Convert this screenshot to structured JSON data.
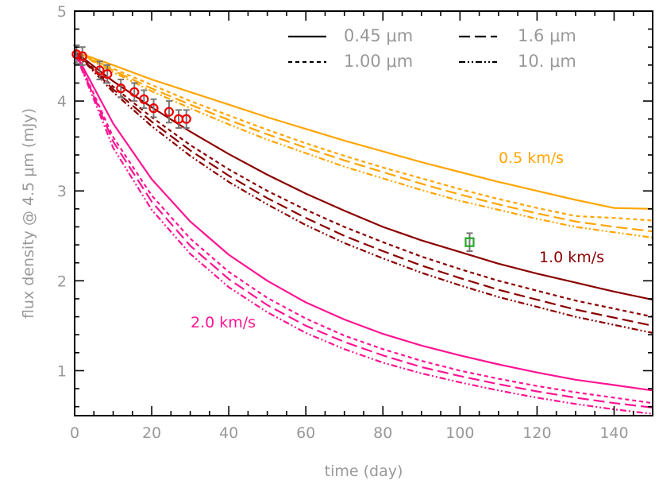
{
  "chart_data": {
    "type": "line",
    "xlabel": "time (day)",
    "ylabel": "flux density @ 4.5 μm (mJy)",
    "xlim": [
      0,
      150
    ],
    "ylim": [
      0.5,
      5.0
    ],
    "x_ticks": [
      0,
      20,
      40,
      60,
      80,
      100,
      120,
      140
    ],
    "y_ticks": [
      1,
      2,
      3,
      4,
      5
    ],
    "grid": false,
    "legend_position": "top-right",
    "legend": [
      {
        "label": "0.45 μm",
        "style": "solid"
      },
      {
        "label": "1.6 μm",
        "style": "long-dash"
      },
      {
        "label": "1.00 μm",
        "style": "short-dash"
      },
      {
        "label": "10. μm",
        "style": "dash-dot"
      }
    ],
    "groups": [
      {
        "annotation": "0.5 km/s",
        "color": "#FFA500",
        "series": [
          {
            "name": "0.45 μm",
            "style": "solid",
            "x": [
              0,
              10,
              20,
              30,
              40,
              50,
              60,
              70,
              80,
              90,
              100,
              110,
              120,
              130,
              140,
              150
            ],
            "y": [
              4.55,
              4.4,
              4.24,
              4.1,
              3.96,
              3.82,
              3.69,
              3.56,
              3.44,
              3.32,
              3.21,
              3.1,
              3.0,
              2.9,
              2.81,
              2.8
            ]
          },
          {
            "name": "1.00 μm",
            "style": "short-dash",
            "x": [
              0,
              10,
              20,
              30,
              40,
              50,
              60,
              70,
              80,
              90,
              100,
              110,
              120,
              130,
              140,
              150
            ],
            "y": [
              4.55,
              4.36,
              4.18,
              4.0,
              3.84,
              3.68,
              3.53,
              3.39,
              3.26,
              3.14,
              3.02,
              2.91,
              2.81,
              2.72,
              2.7,
              2.67
            ]
          },
          {
            "name": "1.6 μm",
            "style": "long-dash",
            "x": [
              0,
              10,
              20,
              30,
              40,
              50,
              60,
              70,
              80,
              90,
              100,
              110,
              120,
              130,
              140,
              150
            ],
            "y": [
              4.55,
              4.34,
              4.14,
              3.96,
              3.79,
              3.63,
              3.48,
              3.34,
              3.21,
              3.08,
              2.96,
              2.85,
              2.75,
              2.66,
              2.6,
              2.55
            ]
          },
          {
            "name": "10. μm",
            "style": "dash-dot",
            "x": [
              0,
              10,
              20,
              30,
              40,
              50,
              60,
              70,
              80,
              90,
              100,
              110,
              120,
              130,
              140,
              150
            ],
            "y": [
              4.55,
              4.32,
              4.11,
              3.92,
              3.74,
              3.57,
              3.42,
              3.27,
              3.14,
              3.01,
              2.89,
              2.79,
              2.69,
              2.6,
              2.54,
              2.48
            ]
          }
        ]
      },
      {
        "annotation": "1.0 km/s",
        "color": "#8B0000",
        "series": [
          {
            "name": "0.45 μm",
            "style": "solid",
            "x": [
              0,
              10,
              20,
              30,
              40,
              50,
              60,
              70,
              80,
              90,
              100,
              110,
              120,
              130,
              140,
              150
            ],
            "y": [
              4.55,
              4.22,
              3.93,
              3.66,
              3.41,
              3.18,
              2.97,
              2.78,
              2.6,
              2.45,
              2.32,
              2.19,
              2.08,
              1.98,
              1.88,
              1.79
            ]
          },
          {
            "name": "1.00 μm",
            "style": "short-dash",
            "x": [
              0,
              10,
              20,
              30,
              40,
              50,
              60,
              70,
              80,
              90,
              100,
              110,
              120,
              130,
              140,
              150
            ],
            "y": [
              4.55,
              4.16,
              3.82,
              3.51,
              3.24,
              3.0,
              2.79,
              2.6,
              2.43,
              2.27,
              2.13,
              2.0,
              1.89,
              1.78,
              1.69,
              1.6
            ]
          },
          {
            "name": "1.6 μm",
            "style": "long-dash",
            "x": [
              0,
              10,
              20,
              30,
              40,
              50,
              60,
              70,
              80,
              90,
              100,
              110,
              120,
              130,
              140,
              150
            ],
            "y": [
              4.55,
              4.13,
              3.77,
              3.45,
              3.17,
              2.92,
              2.7,
              2.5,
              2.33,
              2.17,
              2.03,
              1.9,
              1.79,
              1.68,
              1.59,
              1.5
            ]
          },
          {
            "name": "10. μm",
            "style": "dash-dot",
            "x": [
              0,
              10,
              20,
              30,
              40,
              50,
              60,
              70,
              80,
              90,
              100,
              110,
              120,
              130,
              140,
              150
            ],
            "y": [
              4.55,
              4.1,
              3.72,
              3.39,
              3.1,
              2.85,
              2.62,
              2.42,
              2.25,
              2.09,
              1.95,
              1.82,
              1.71,
              1.6,
              1.51,
              1.42
            ]
          }
        ]
      },
      {
        "annotation": "2.0 km/s",
        "color": "#FF1493",
        "series": [
          {
            "name": "0.45 μm",
            "style": "solid",
            "x": [
              0,
              10,
              20,
              30,
              40,
              50,
              60,
              70,
              80,
              90,
              100,
              110,
              120,
              130,
              140,
              150
            ],
            "y": [
              4.55,
              3.75,
              3.13,
              2.66,
              2.29,
              2.0,
              1.76,
              1.57,
              1.41,
              1.28,
              1.17,
              1.07,
              0.98,
              0.9,
              0.84,
              0.78
            ]
          },
          {
            "name": "1.00 μm",
            "style": "short-dash",
            "x": [
              0,
              10,
              20,
              30,
              40,
              50,
              60,
              70,
              80,
              90,
              100,
              110,
              120,
              130,
              140,
              150
            ],
            "y": [
              4.55,
              3.6,
              2.95,
              2.47,
              2.1,
              1.81,
              1.58,
              1.39,
              1.24,
              1.11,
              1.0,
              0.91,
              0.83,
              0.76,
              0.7,
              0.64
            ]
          },
          {
            "name": "1.6 μm",
            "style": "long-dash",
            "x": [
              0,
              10,
              20,
              30,
              40,
              50,
              60,
              70,
              80,
              90,
              100,
              110,
              120,
              130,
              140,
              150
            ],
            "y": [
              4.55,
              3.55,
              2.88,
              2.39,
              2.02,
              1.73,
              1.5,
              1.32,
              1.17,
              1.04,
              0.94,
              0.85,
              0.77,
              0.7,
              0.64,
              0.59
            ]
          },
          {
            "name": "10. μm",
            "style": "dash-dot",
            "x": [
              0,
              10,
              20,
              30,
              40,
              50,
              60,
              70,
              80,
              90,
              100,
              110,
              120,
              130,
              140,
              150
            ],
            "y": [
              4.55,
              3.48,
              2.79,
              2.3,
              1.93,
              1.65,
              1.42,
              1.24,
              1.09,
              0.97,
              0.87,
              0.78,
              0.7,
              0.63,
              0.57,
              0.52
            ]
          }
        ]
      }
    ],
    "observations": {
      "color": "#EE0000",
      "errorbar_color": "#777777",
      "x": [
        0.5,
        2,
        6.5,
        8.5,
        12,
        15.5,
        18,
        20.5,
        24.5,
        27,
        29
      ],
      "y": [
        4.52,
        4.5,
        4.34,
        4.3,
        4.14,
        4.1,
        4.02,
        3.92,
        3.88,
        3.8,
        3.8
      ],
      "yerr": [
        0.1,
        0.1,
        0.1,
        0.1,
        0.1,
        0.1,
        0.1,
        0.1,
        0.12,
        0.1,
        0.1
      ]
    },
    "extra_point": {
      "color": "#22AA22",
      "x": 102.5,
      "y": 2.43,
      "yerr": 0.1
    }
  }
}
